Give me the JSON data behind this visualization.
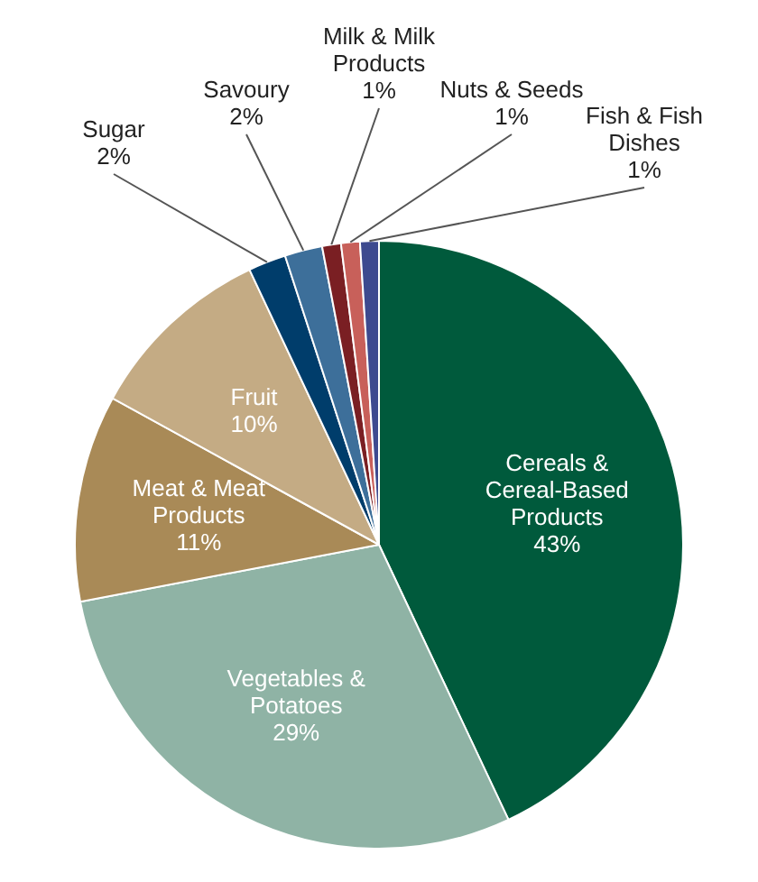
{
  "chart_data": {
    "type": "pie",
    "categories": [
      "Cereals & Cereal-Based Products",
      "Vegetables & Potatoes",
      "Meat & Meat Products",
      "Fruit",
      "Sugar",
      "Savoury",
      "Milk & Milk Products",
      "Nuts & Seeds",
      "Fish & Fish Dishes"
    ],
    "values": [
      43,
      29,
      11,
      10,
      2,
      2,
      1,
      1,
      1
    ],
    "value_labels": [
      "43%",
      "29%",
      "11%",
      "10%",
      "2%",
      "2%",
      "1%",
      "1%",
      "1%"
    ],
    "colors": [
      "#005a3c",
      "#8fb3a5",
      "#a98a57",
      "#c4ab84",
      "#003d6b",
      "#3d6f9a",
      "#7a1f23",
      "#c8605a",
      "#3d4a8f"
    ],
    "legend": false
  }
}
